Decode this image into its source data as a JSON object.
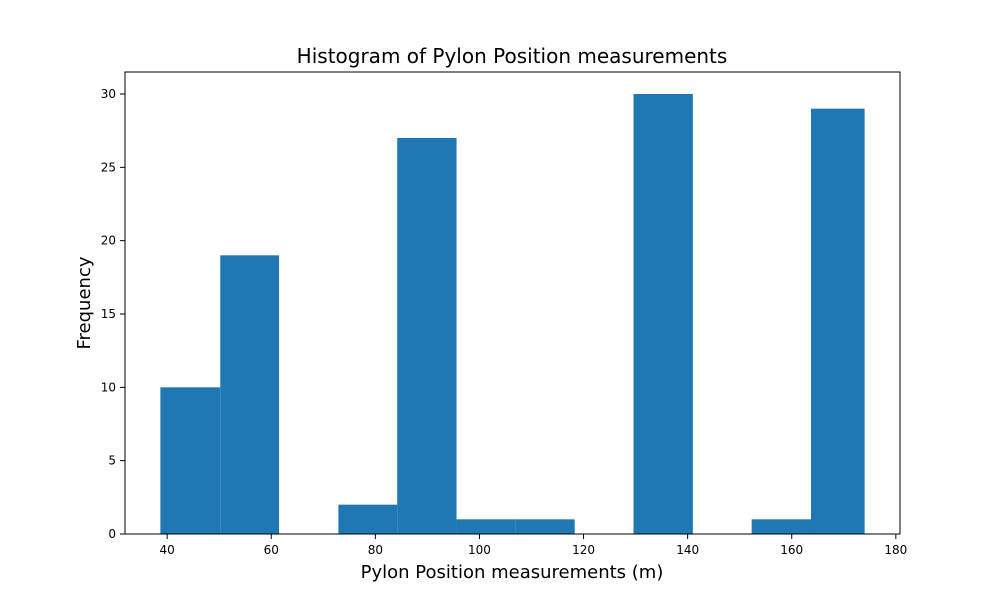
{
  "chart_data": {
    "type": "bar",
    "title": "Histogram of Pylon Position measurements",
    "xlabel": "Pylon Position measurements (m)",
    "ylabel": "Frequency",
    "bin_edges": [
      38.7,
      50.2,
      61.5,
      72.9,
      84.2,
      95.6,
      106.9,
      118.3,
      129.6,
      141.0,
      152.3,
      163.7,
      174.0
    ],
    "values": [
      10,
      19,
      0,
      2,
      27,
      1,
      1,
      0,
      30,
      0,
      1,
      29
    ],
    "xlim": [
      31.9,
      180.8
    ],
    "ylim": [
      0,
      31.5
    ],
    "x_ticks": [
      40,
      60,
      80,
      100,
      120,
      140,
      160,
      180
    ],
    "y_ticks": [
      0,
      5,
      10,
      15,
      20,
      25,
      30
    ],
    "bar_color": "#1f77b4",
    "grid": false
  }
}
